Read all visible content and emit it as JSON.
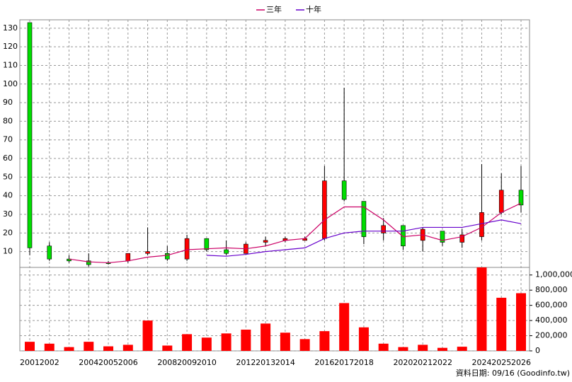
{
  "chart_data": [
    {
      "type": "candlestick",
      "categories": [
        "2001",
        "2002",
        null,
        "2004",
        "2005",
        "2006",
        null,
        "2008",
        "2009",
        "2010",
        null,
        "2012",
        "2013",
        "2014",
        null,
        "2016",
        "2017",
        "2018",
        null,
        "2020",
        "2021",
        "2022",
        null,
        "2024",
        "2025",
        "2026"
      ],
      "open": [
        133,
        13,
        6,
        5,
        4,
        5,
        9,
        9,
        6,
        17,
        11,
        9,
        15,
        16,
        16,
        17,
        48,
        37,
        20,
        24,
        16,
        21,
        15,
        18,
        31,
        43
      ],
      "high": [
        133,
        15,
        8,
        9,
        5,
        9,
        23,
        13,
        19,
        17,
        16,
        15,
        18,
        18,
        18,
        56,
        98,
        37,
        28,
        24,
        23,
        21,
        22,
        57,
        52,
        56
      ],
      "low": [
        8,
        5,
        4,
        2,
        3,
        4,
        8,
        5,
        5,
        10,
        8,
        9,
        13,
        15,
        16,
        16,
        37,
        14,
        16,
        11,
        10,
        13,
        12,
        16,
        30,
        31
      ],
      "close": [
        12,
        6,
        5,
        3,
        3.5,
        9,
        10,
        6,
        17,
        11,
        9,
        14,
        16,
        17,
        17,
        48,
        38,
        18,
        24,
        13,
        22,
        15,
        19,
        31,
        43,
        35
      ],
      "up_color": "#ff0000",
      "down_color": "#00dd00",
      "series": [
        {
          "name": "三年",
          "color": "#cc0066",
          "values": [
            null,
            null,
            6,
            4.5,
            4,
            5,
            7,
            8,
            11,
            11.5,
            12,
            11.5,
            13,
            16,
            17,
            27,
            34,
            34,
            27,
            18,
            19,
            16,
            18,
            23,
            31,
            36
          ]
        },
        {
          "name": "十年",
          "color": "#6600cc",
          "values": [
            null,
            null,
            null,
            null,
            null,
            null,
            null,
            null,
            null,
            8,
            7.5,
            8.5,
            10,
            11,
            12,
            17,
            20,
            21,
            21,
            21,
            23,
            23,
            23,
            25,
            27,
            25
          ]
        }
      ],
      "ylim": [
        1.5,
        134.5
      ],
      "yticks": [
        10,
        20,
        30,
        40,
        50,
        60,
        70,
        80,
        90,
        100,
        110,
        120,
        130
      ],
      "grid": true
    },
    {
      "type": "bar",
      "values": [
        120000,
        95000,
        50000,
        120000,
        60000,
        80000,
        400000,
        70000,
        220000,
        175000,
        230000,
        280000,
        360000,
        240000,
        155000,
        260000,
        630000,
        310000,
        95000,
        50000,
        80000,
        40000,
        55000,
        1100000,
        700000,
        760000
      ],
      "color": "#ff0000",
      "ylim": [
        0,
        1100000
      ],
      "yticks": [
        0,
        {
          "value": 200000,
          "label": "200,000"
        },
        {
          "value": 400000,
          "label": "400,000"
        },
        {
          "value": 600000,
          "label": "600,000"
        },
        {
          "value": 800000,
          "label": "800,000"
        },
        {
          "value": 1000000,
          "label": "1,000,000"
        }
      ],
      "grid": true
    }
  ],
  "footer": "資料日期: 09/16 (Goodinfo.tw)"
}
